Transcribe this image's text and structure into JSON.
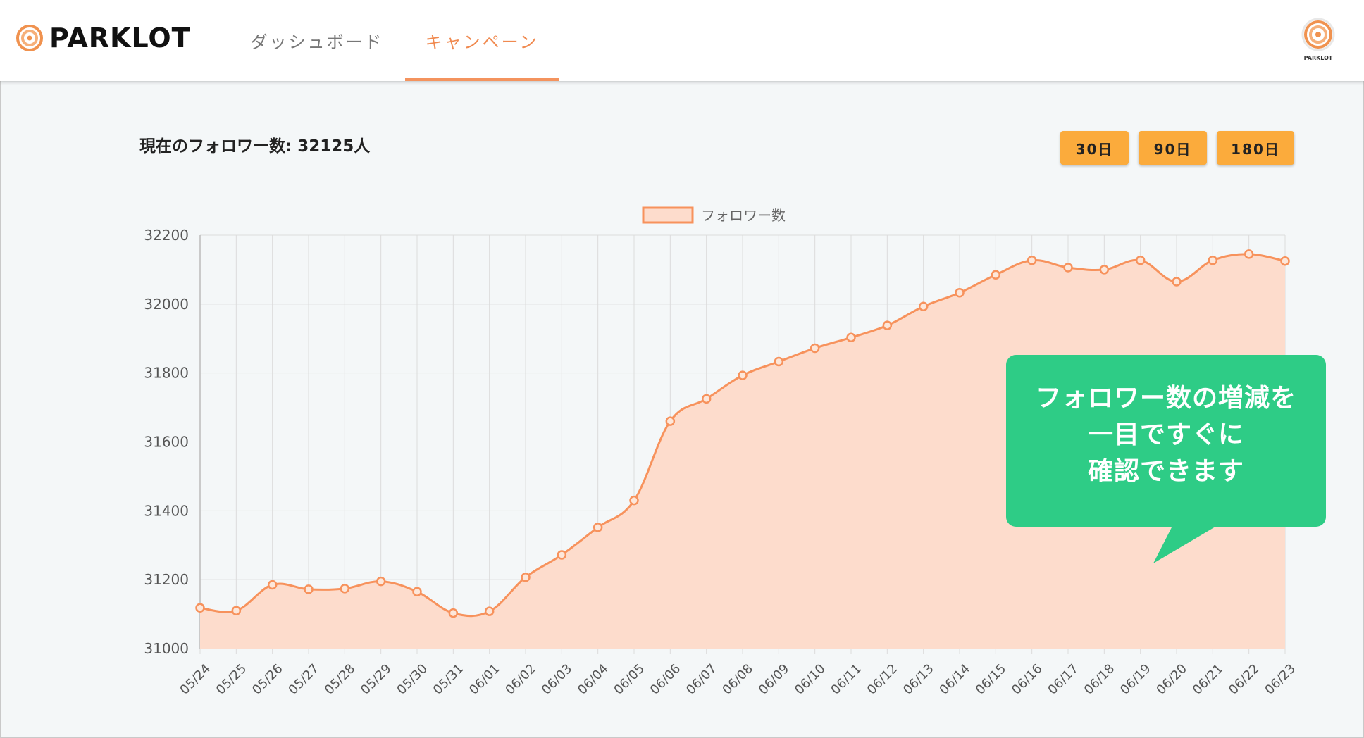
{
  "header": {
    "logo_text": "PARKLOT",
    "tabs": [
      {
        "label": "ダッシュボード",
        "active": false
      },
      {
        "label": "キャンペーン",
        "active": true
      }
    ],
    "avatar_text": "PARKLOT"
  },
  "main": {
    "follower_title": "現在のフォロワー数: 32125人",
    "range_buttons": [
      "30日",
      "90日",
      "180日"
    ]
  },
  "callout": {
    "lines": [
      "フォロワー数の増減を",
      "一目ですぐに",
      "確認できます"
    ]
  },
  "colors": {
    "accent": "#f08a50",
    "line": "#f7925c",
    "fill": "#fddccc",
    "button": "#fbab3c",
    "callout": "#2ecc86"
  },
  "chart_data": {
    "type": "area",
    "legend": "フォロワー数",
    "legend_position": "top",
    "grid": true,
    "ylim": [
      31000,
      32200
    ],
    "yticks": [
      31000,
      31200,
      31400,
      31600,
      31800,
      32000,
      32200
    ],
    "categories": [
      "05/24",
      "05/25",
      "05/26",
      "05/27",
      "05/28",
      "05/29",
      "05/30",
      "05/31",
      "06/01",
      "06/02",
      "06/03",
      "06/04",
      "06/05",
      "06/06",
      "06/07",
      "06/08",
      "06/09",
      "06/10",
      "06/11",
      "06/12",
      "06/13",
      "06/14",
      "06/15",
      "06/16",
      "06/17",
      "06/18",
      "06/19",
      "06/20",
      "06/21",
      "06/22",
      "06/23"
    ],
    "series": [
      {
        "name": "フォロワー数",
        "values": [
          31118,
          31110,
          31185,
          31172,
          31174,
          31195,
          31165,
          31103,
          31108,
          31207,
          31272,
          31352,
          31430,
          31660,
          31725,
          31793,
          31833,
          31872,
          31903,
          31938,
          31993,
          32033,
          32085,
          32127,
          32106,
          32100,
          32127,
          32065,
          32127,
          32145,
          32125
        ]
      }
    ]
  }
}
